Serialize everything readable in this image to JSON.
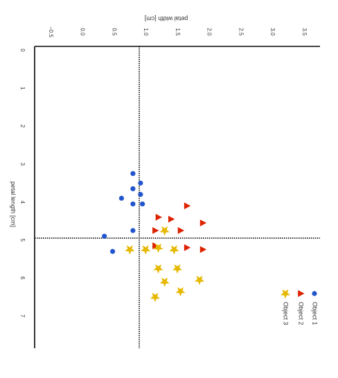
{
  "chart_data": {
    "type": "scatter",
    "title": "",
    "xlabel": "petal width [cm]",
    "ylabel": "petal length [cm]",
    "xlim": [
      -0.75,
      3.75
    ],
    "ylim": [
      -0.1,
      7.85
    ],
    "x_ticks": [
      "−0.5",
      "0.0",
      "0.5",
      "1.0",
      "1.5",
      "2.0",
      "2.5",
      "3.0",
      "3.5"
    ],
    "x_tick_values": [
      -0.5,
      0.0,
      0.5,
      1.0,
      1.5,
      2.0,
      2.5,
      3.0,
      3.5
    ],
    "y_ticks": [
      "0",
      "1",
      "2",
      "3",
      "4",
      "5",
      "6",
      "7"
    ],
    "y_tick_values": [
      0,
      1,
      2,
      3,
      4,
      5,
      6,
      7
    ],
    "reference_lines": {
      "x": 0.9,
      "y": 4.95
    },
    "grid": false,
    "legend_position": "bottom-right",
    "series": [
      {
        "name": "Object 1",
        "marker": "circle",
        "color": "#2255cc",
        "x": [
          0.8,
          0.92,
          0.8,
          0.92,
          0.62,
          0.8,
          0.95,
          0.8,
          0.35,
          0.48
        ],
        "y": [
          3.25,
          3.5,
          3.65,
          3.8,
          3.9,
          4.05,
          4.05,
          4.75,
          4.9,
          5.3
        ]
      },
      {
        "name": "Object 2",
        "marker": "triangle",
        "color": "#dd2200",
        "x": [
          1.65,
          1.2,
          1.4,
          1.9,
          1.15,
          1.55,
          1.15,
          1.65,
          1.9
        ],
        "y": [
          4.1,
          4.4,
          4.45,
          4.55,
          4.75,
          4.75,
          5.15,
          5.2,
          5.25
        ]
      },
      {
        "name": "Object 3",
        "marker": "star",
        "color": "#e6b800",
        "x": [
          1.3,
          0.75,
          1.0,
          1.2,
          1.45,
          1.2,
          1.3,
          1.5,
          1.55,
          1.15,
          1.85
        ],
        "y": [
          4.75,
          5.25,
          5.25,
          5.2,
          5.25,
          5.75,
          6.1,
          5.75,
          6.35,
          6.5,
          6.05
        ]
      }
    ]
  }
}
